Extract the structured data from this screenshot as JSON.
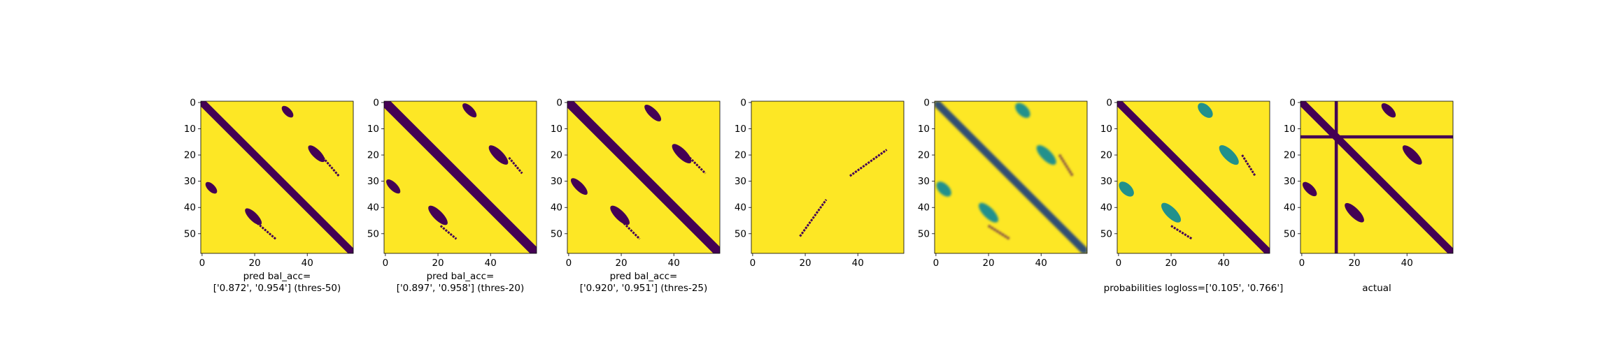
{
  "chart_data": [
    {
      "type": "heatmap",
      "colormap": "viridis",
      "matrix_size": 58,
      "x_ticks": [
        "0",
        "20",
        "40"
      ],
      "y_ticks": [
        "0",
        "10",
        "20",
        "30",
        "40",
        "50"
      ],
      "xlabel": [
        "pred bal_acc=",
        "['0.872', '0.954'] (thres-50)"
      ],
      "features": {
        "diagonal": {
          "half_width": 2
        },
        "blobs": [
          {
            "c": [
              32.5,
              3.5
            ],
            "len": 4,
            "w": 1.4
          },
          {
            "c": [
              3.5,
              32.5
            ],
            "len": 4,
            "w": 1.4
          },
          {
            "c": [
              43.5,
              19.5
            ],
            "len": 6,
            "w": 1.6
          },
          {
            "c": [
              19.5,
              43.5
            ],
            "len": 6,
            "w": 1.6
          }
        ],
        "thin_lines": [
          {
            "from": [
              21,
              46
            ],
            "to": [
              28,
              52
            ]
          },
          {
            "from": [
              46,
              21
            ],
            "to": [
              52,
              28
            ]
          }
        ]
      }
    },
    {
      "type": "heatmap",
      "colormap": "viridis",
      "matrix_size": 58,
      "x_ticks": [
        "0",
        "20",
        "40"
      ],
      "y_ticks": [
        "0",
        "10",
        "20",
        "30",
        "40",
        "50"
      ],
      "xlabel": [
        "pred bal_acc=",
        "['0.897', '0.958'] (thres-20)"
      ],
      "features": {
        "diagonal": {
          "half_width": 2.5
        },
        "blobs": [
          {
            "c": [
              32,
              3
            ],
            "len": 5,
            "w": 1.5
          },
          {
            "c": [
              3,
              32
            ],
            "len": 5,
            "w": 1.5
          },
          {
            "c": [
              43,
              20
            ],
            "len": 7,
            "w": 1.8
          },
          {
            "c": [
              20,
              43
            ],
            "len": 7,
            "w": 1.8
          }
        ],
        "thin_lines": [
          {
            "from": [
              21,
              47
            ],
            "to": [
              27,
              52
            ]
          },
          {
            "from": [
              47,
              21
            ],
            "to": [
              52,
              27
            ]
          }
        ]
      }
    },
    {
      "type": "heatmap",
      "colormap": "viridis",
      "matrix_size": 58,
      "x_ticks": [
        "0",
        "20",
        "40"
      ],
      "y_ticks": [
        "0",
        "10",
        "20",
        "30",
        "40",
        "50"
      ],
      "xlabel": [
        "pred bal_acc=",
        "['0.920', '0.951'] (thres-25)"
      ],
      "features": {
        "diagonal": {
          "half_width": 2.5
        },
        "blobs": [
          {
            "c": [
              32,
              4
            ],
            "len": 6,
            "w": 1.6
          },
          {
            "c": [
              4,
              32
            ],
            "len": 6,
            "w": 1.6
          },
          {
            "c": [
              43,
              19.5
            ],
            "len": 7,
            "w": 1.8
          },
          {
            "c": [
              19.5,
              43
            ],
            "len": 7,
            "w": 1.8
          }
        ],
        "thin_lines": [
          {
            "from": [
              21,
              46
            ],
            "to": [
              27,
              52
            ]
          },
          {
            "from": [
              46,
              21
            ],
            "to": [
              52,
              27
            ]
          }
        ]
      }
    },
    {
      "type": "heatmap",
      "colormap": "viridis",
      "matrix_size": 58,
      "x_ticks": [
        "0",
        "20",
        "40"
      ],
      "y_ticks": [
        "0",
        "10",
        "20",
        "30",
        "40",
        "50"
      ],
      "xlabel": [],
      "features": {
        "diagonal": null,
        "blobs": [],
        "thin_lines": [
          {
            "from": [
              18,
              51
            ],
            "to": [
              28,
              37
            ]
          },
          {
            "from": [
              37,
              28
            ],
            "to": [
              51,
              18
            ]
          }
        ]
      }
    },
    {
      "type": "heatmap",
      "colormap": "viridis",
      "matrix_size": 58,
      "x_ticks": [
        "0",
        "20",
        "40"
      ],
      "y_ticks": [
        "0",
        "10",
        "20",
        "30",
        "40",
        "50"
      ],
      "xlabel": [
        "",
        "probabilities logloss=['0.105', '0.766']"
      ],
      "features": {
        "diagonal": {
          "half_width": 2,
          "soft": true
        },
        "blobs": [
          {
            "c": [
              33,
              3
            ],
            "len": 5,
            "w": 2,
            "soft": true
          },
          {
            "c": [
              3,
              33
            ],
            "len": 5,
            "w": 2,
            "soft": true
          },
          {
            "c": [
              42,
              20
            ],
            "len": 7,
            "w": 2,
            "soft": true
          },
          {
            "c": [
              20,
              42
            ],
            "len": 7,
            "w": 2,
            "soft": true
          }
        ],
        "thin_lines": [
          {
            "from": [
              20,
              47
            ],
            "to": [
              28,
              52
            ]
          },
          {
            "from": [
              47,
              20
            ],
            "to": [
              52,
              28
            ]
          }
        ]
      }
    },
    {
      "type": "heatmap",
      "colormap": "viridis",
      "matrix_size": 58,
      "x_ticks": [
        "0",
        "20",
        "40"
      ],
      "y_ticks": [
        "0",
        "10",
        "20",
        "30",
        "40",
        "50"
      ],
      "xlabel": [
        "",
        "actual"
      ],
      "features": {
        "diagonal": {
          "half_width": 2
        },
        "blobs": [
          {
            "c": [
              33,
              3
            ],
            "len": 5,
            "w": 1.6
          },
          {
            "c": [
              3,
              33
            ],
            "len": 5,
            "w": 1.6
          },
          {
            "c": [
              42,
              20
            ],
            "len": 7,
            "w": 1.8
          },
          {
            "c": [
              20,
              42
            ],
            "len": 7,
            "w": 1.8
          }
        ],
        "thin_lines": [],
        "cross_row": 13,
        "cross_col": 13
      }
    }
  ]
}
